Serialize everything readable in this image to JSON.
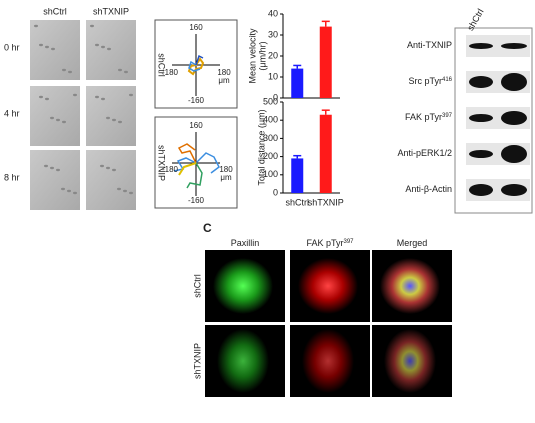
{
  "panel_a": {
    "columns": [
      "shCtrl",
      "shTXNIP"
    ],
    "rows": [
      "0 hr",
      "4 hr",
      "8 hr"
    ]
  },
  "tracks": {
    "rows": [
      "shCtrl",
      "shTXNIP"
    ],
    "y_top": "160",
    "y_bottom": "-160",
    "x_left": "-180",
    "x_right": "180",
    "unit": "μm"
  },
  "chart_data": [
    {
      "type": "bar",
      "y_label": [
        "Mean velocity",
        "(μm/hr)"
      ],
      "categories": [
        null,
        null
      ],
      "series": [
        {
          "colors": [
            "#1a1aff",
            "#ff1a1a"
          ],
          "values": [
            14,
            34
          ],
          "errors": [
            1.5,
            2.5
          ]
        }
      ],
      "ylim": [
        0,
        40
      ],
      "yticks": [
        0,
        10,
        20,
        30,
        40
      ]
    },
    {
      "type": "bar",
      "y_label": [
        "Total distance (μm)"
      ],
      "categories": [
        "shCtrl",
        "shTXNIP"
      ],
      "series": [
        {
          "colors": [
            "#1a1aff",
            "#ff1a1a"
          ],
          "values": [
            190,
            430
          ],
          "errors": [
            15,
            25
          ]
        }
      ],
      "ylim": [
        0,
        500
      ],
      "yticks": [
        0,
        100,
        200,
        300,
        400,
        500
      ]
    }
  ],
  "blot": {
    "column": "shCtrl",
    "bands": [
      {
        "text": "Anti-TXNIP"
      },
      {
        "text": "Src pTyr",
        "sup": "416"
      },
      {
        "text": "FAK pTyr",
        "sup": "397"
      },
      {
        "text": "Anti-pERK1/2"
      },
      {
        "text": "Anti-β-Actin"
      }
    ]
  },
  "panel_c": {
    "label": "C",
    "columns": [
      {
        "text": "Paxillin"
      },
      {
        "text": "FAK pTyr",
        "sup": "397"
      },
      {
        "text": "Merged"
      }
    ],
    "rows": [
      "shCtrl",
      "shTXNIP"
    ]
  }
}
